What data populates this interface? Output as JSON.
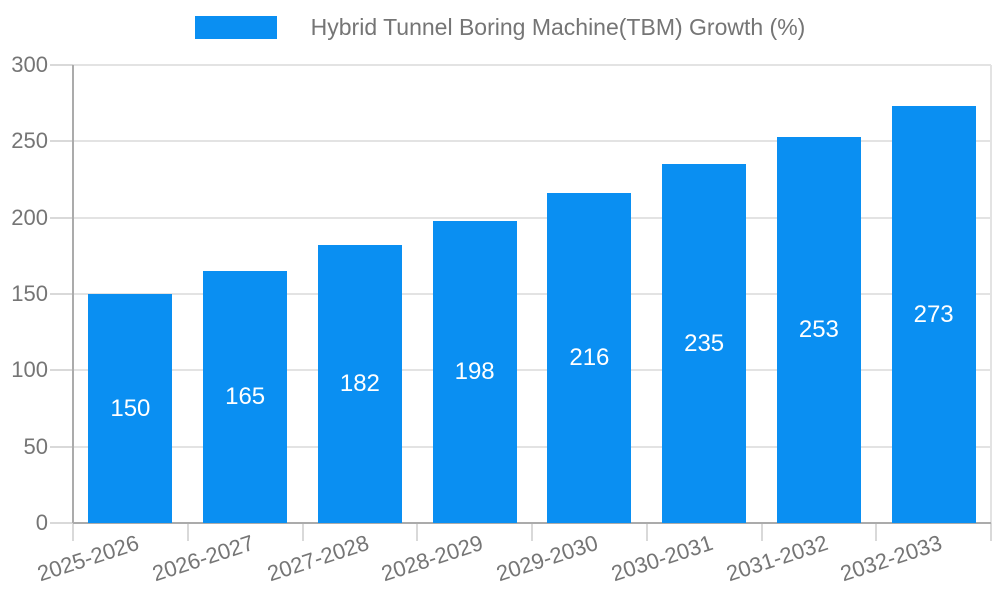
{
  "legend": {
    "swatch_color": "#0A8FF2"
  },
  "chart_data": {
    "type": "bar",
    "title": "Hybrid Tunnel Boring Machine(TBM) Growth (%)",
    "series_name": "Hybrid Tunnel Boring Machine(TBM) Growth (%)",
    "categories": [
      "2025-2026",
      "2026-2027",
      "2027-2028",
      "2028-2029",
      "2029-2030",
      "2030-2031",
      "2031-2032",
      "2032-2033"
    ],
    "values": [
      150,
      165,
      182,
      198,
      216,
      235,
      253,
      273
    ],
    "xlabel": "",
    "ylabel": "",
    "ylim": [
      0,
      300
    ],
    "y_ticks": [
      0,
      50,
      100,
      150,
      200,
      250,
      300
    ],
    "grid": true,
    "legend_position": "top-center",
    "x_label_rotation_deg": -18,
    "colors": {
      "bar": "#0A8FF2",
      "value_label": "#FFFFFF",
      "axis_text": "#757575",
      "axis_line": "#ABABAB",
      "gridline": "#E3E3E3",
      "tick": "#D9D9D9",
      "background": "#FFFFFF"
    }
  }
}
